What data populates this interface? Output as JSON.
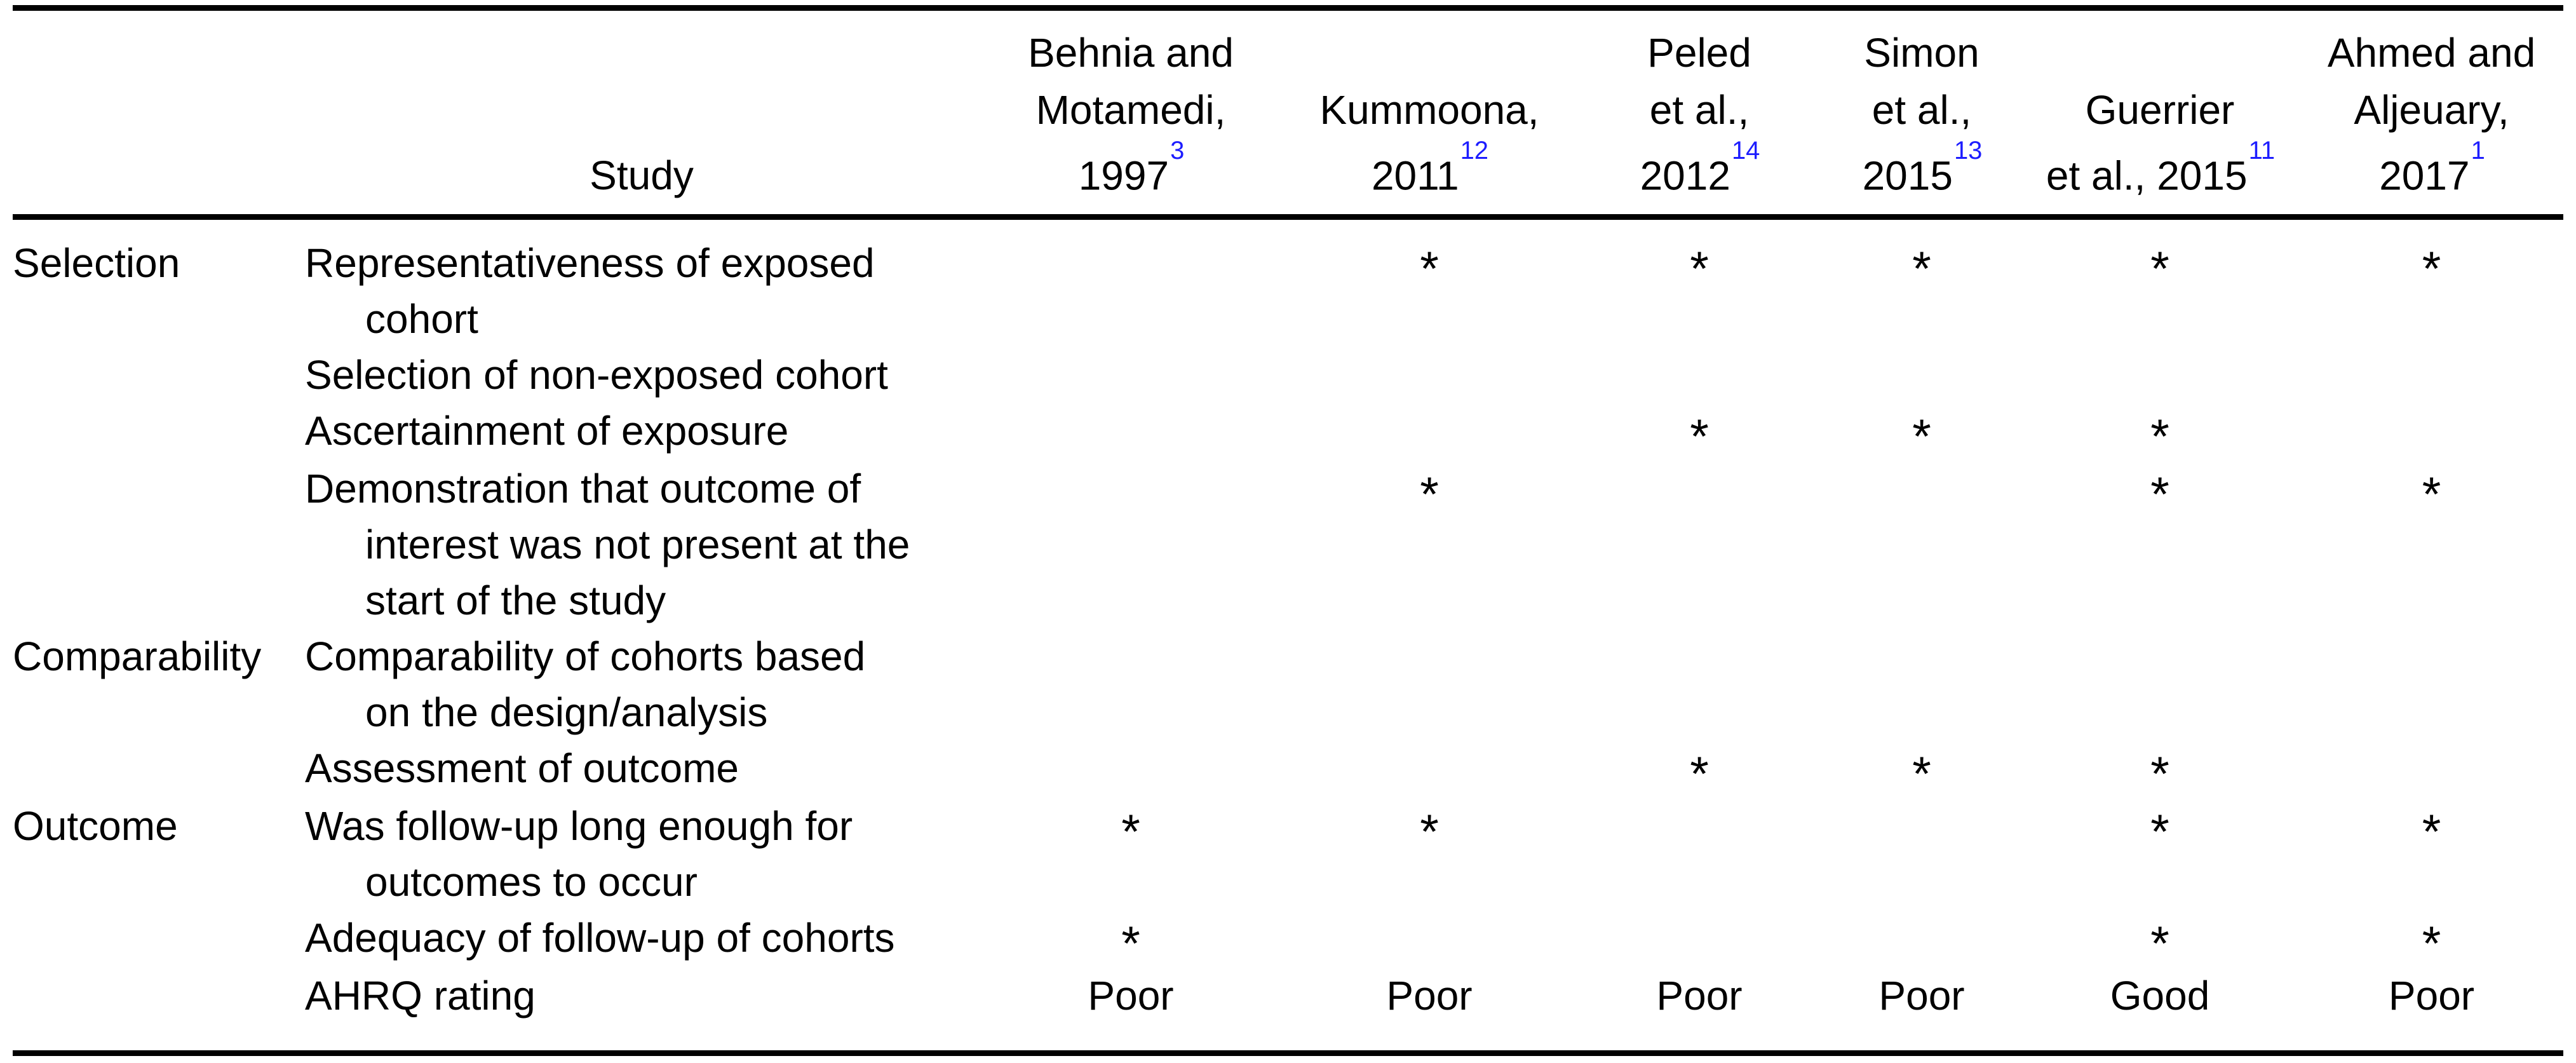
{
  "colors": {
    "background": "#ffffff",
    "text": "#000000",
    "rule": "#000000",
    "reference_link": "#1d1dff"
  },
  "table": {
    "study_header": "Study",
    "columns": [
      {
        "id": "behnia-motamedi-1997",
        "lines": [
          "Behnia and",
          "Motamedi,"
        ],
        "last_line": "1997",
        "ref": "3"
      },
      {
        "id": "kummoona-2011",
        "lines": [
          "Kummoona,"
        ],
        "last_line": "2011",
        "ref": "12"
      },
      {
        "id": "peled-2012",
        "lines": [
          "Peled",
          "et al.,"
        ],
        "last_line": "2012",
        "ref": "14"
      },
      {
        "id": "simon-2015",
        "lines": [
          "Simon",
          "et al.,"
        ],
        "last_line": "2015",
        "ref": "13"
      },
      {
        "id": "guerrier-2015",
        "lines": [
          "Guerrier"
        ],
        "last_line": "et al., 2015",
        "ref": "11"
      },
      {
        "id": "ahmed-aljeuary-2017",
        "lines": [
          "Ahmed and",
          "Aljeuary,"
        ],
        "last_line": "2017",
        "ref": "1"
      }
    ],
    "rows": [
      {
        "id": "representativeness-exposed-cohort",
        "category": "Selection",
        "criterion_lines": [
          "Representativeness of exposed",
          "cohort"
        ],
        "marks": [
          "",
          "*",
          "*",
          "*",
          "*",
          "*"
        ]
      },
      {
        "id": "selection-non-exposed-cohort",
        "category": "",
        "criterion_lines": [
          "Selection of non-exposed cohort"
        ],
        "marks": [
          "",
          "",
          "",
          "",
          "",
          ""
        ]
      },
      {
        "id": "ascertainment-of-exposure",
        "category": "",
        "criterion_lines": [
          "Ascertainment of exposure"
        ],
        "marks": [
          "",
          "",
          "*",
          "*",
          "*",
          ""
        ]
      },
      {
        "id": "demonstration-outcome-not-present",
        "category": "",
        "criterion_lines": [
          "Demonstration that outcome of",
          "interest was not present at the",
          "start of the study"
        ],
        "marks": [
          "",
          "*",
          "",
          "",
          "*",
          "*"
        ]
      },
      {
        "id": "comparability-of-cohorts",
        "category": "Comparability",
        "criterion_lines": [
          "Comparability of cohorts based",
          "on the design/analysis"
        ],
        "marks": [
          "",
          "",
          "",
          "",
          "",
          ""
        ]
      },
      {
        "id": "assessment-of-outcome",
        "category": "",
        "criterion_lines": [
          "Assessment of outcome"
        ],
        "marks": [
          "",
          "",
          "*",
          "*",
          "*",
          ""
        ]
      },
      {
        "id": "follow-up-long-enough",
        "category": "Outcome",
        "criterion_lines": [
          "Was follow-up long enough for",
          "outcomes to occur"
        ],
        "marks": [
          "*",
          "*",
          "",
          "",
          "*",
          "*"
        ]
      },
      {
        "id": "adequacy-of-follow-up",
        "category": "",
        "criterion_lines": [
          "Adequacy of follow-up of cohorts"
        ],
        "marks": [
          "*",
          "",
          "",
          "",
          "*",
          "*"
        ]
      },
      {
        "id": "ahrq-rating",
        "category": "",
        "criterion_lines": [
          "AHRQ rating"
        ],
        "marks": [
          "Poor",
          "Poor",
          "Poor",
          "Poor",
          "Good",
          "Poor"
        ]
      }
    ]
  }
}
